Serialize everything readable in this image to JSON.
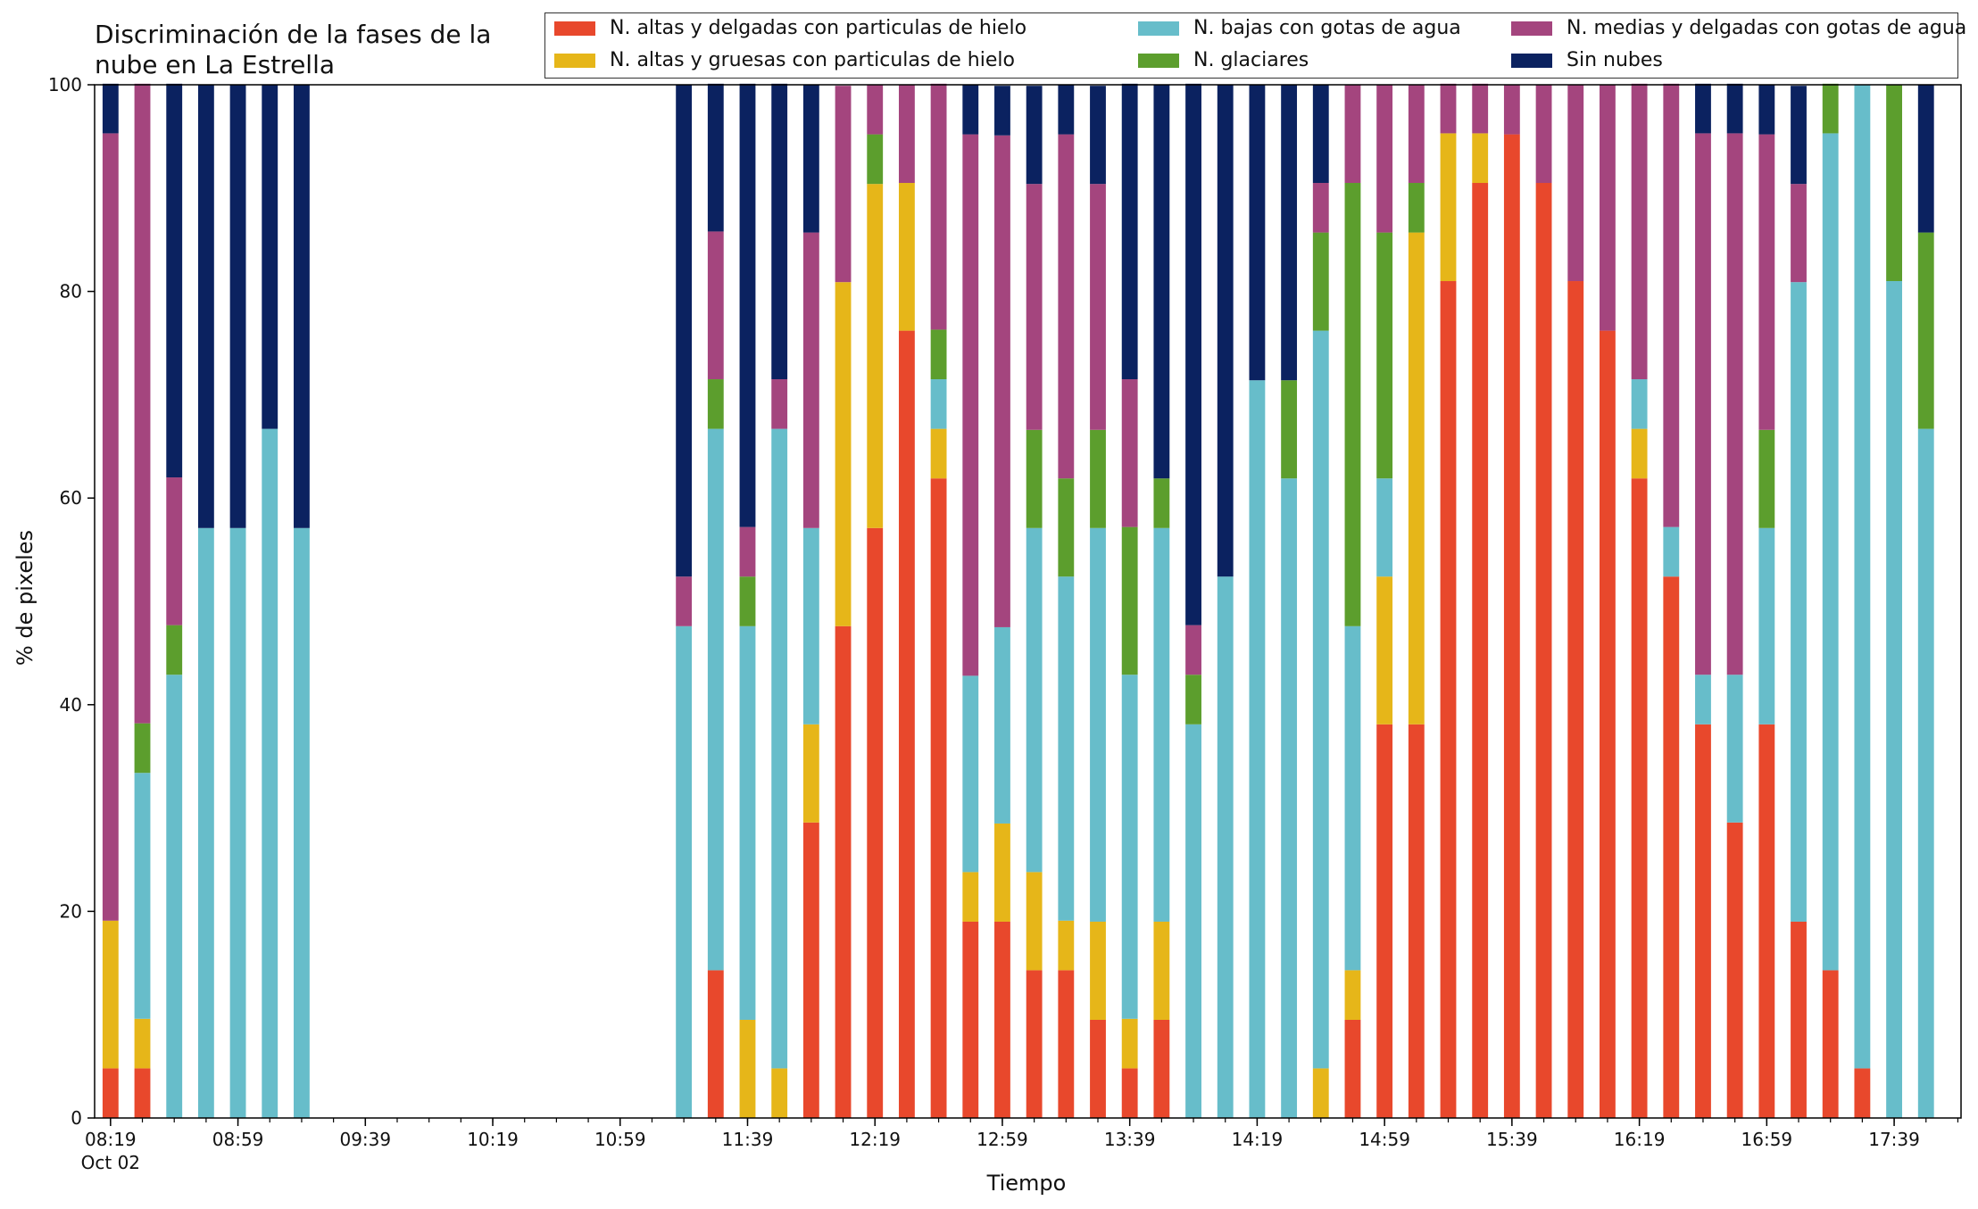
{
  "chart_data": {
    "type": "bar",
    "stacked": true,
    "title": "Discriminación de la fases de la\nnube en La Estrella",
    "xlabel": "Tiempo",
    "ylabel": "% de pixeles",
    "ylim": [
      0,
      100
    ],
    "yticks": [
      "0",
      "20",
      "40",
      "60",
      "80",
      "100"
    ],
    "xlim": [
      "08:14",
      "18:00"
    ],
    "xticks": [
      "08:19",
      "08:59",
      "09:39",
      "10:19",
      "10:59",
      "11:39",
      "12:19",
      "12:59",
      "13:39",
      "14:19",
      "14:59",
      "15:39",
      "16:19",
      "16:59",
      "17:39"
    ],
    "xtick_date": "Oct 02",
    "minor_tick_interval_min": 10,
    "bar_width_min": 5,
    "legend": {
      "location": "top-right",
      "columns": 3
    },
    "series": [
      {
        "name": "N. altas y delgadas con particulas de hielo",
        "color": "#E8482C"
      },
      {
        "name": "N. altas y gruesas con particulas de hielo",
        "color": "#E6B619"
      },
      {
        "name": "N. bajas con gotas de agua",
        "color": "#67BDCA"
      },
      {
        "name": "N. glaciares",
        "color": "#5C9E2D"
      },
      {
        "name": "N. medias y delgadas con gotas de agua",
        "color": "#A4457E"
      },
      {
        "name": "Sin nubes",
        "color": "#0B2260"
      }
    ],
    "x": [
      "08:19",
      "08:29",
      "08:39",
      "08:49",
      "08:59",
      "09:09",
      "09:19",
      "11:19",
      "11:29",
      "11:39",
      "11:49",
      "11:59",
      "12:09",
      "12:19",
      "12:29",
      "12:39",
      "12:49",
      "12:59",
      "13:09",
      "13:19",
      "13:29",
      "13:39",
      "13:49",
      "13:59",
      "14:09",
      "14:19",
      "14:29",
      "14:39",
      "14:49",
      "14:59",
      "15:09",
      "15:19",
      "15:29",
      "15:39",
      "15:49",
      "15:59",
      "16:09",
      "16:19",
      "16:29",
      "16:39",
      "16:49",
      "16:59",
      "17:09",
      "17:19",
      "17:29",
      "17:39",
      "17:49"
    ],
    "values": [
      [
        4.8,
        14.3,
        0,
        0,
        76.2,
        4.8
      ],
      [
        4.8,
        4.8,
        23.8,
        4.8,
        61.9,
        0
      ],
      [
        0,
        0,
        42.9,
        4.8,
        14.3,
        38.1
      ],
      [
        0,
        0,
        57.1,
        0,
        0,
        42.9
      ],
      [
        0,
        0,
        57.1,
        0,
        0,
        42.9
      ],
      [
        0,
        0,
        66.7,
        0,
        0,
        33.3
      ],
      [
        0,
        0,
        57.1,
        0,
        0,
        42.9
      ],
      [
        0,
        0,
        47.6,
        0,
        4.8,
        47.6
      ],
      [
        14.3,
        0,
        52.4,
        4.8,
        14.3,
        14.3
      ],
      [
        0,
        9.5,
        38.1,
        4.8,
        4.8,
        42.9
      ],
      [
        0,
        4.8,
        61.9,
        0,
        4.8,
        28.6
      ],
      [
        28.6,
        9.5,
        19.0,
        0,
        28.6,
        14.3
      ],
      [
        47.6,
        33.3,
        0,
        0,
        19.0,
        0
      ],
      [
        57.1,
        33.3,
        0,
        4.8,
        4.8,
        0
      ],
      [
        76.2,
        14.3,
        0,
        0,
        9.5,
        0
      ],
      [
        61.9,
        4.8,
        4.8,
        4.8,
        23.8,
        0
      ],
      [
        19.0,
        4.8,
        19.0,
        0,
        52.4,
        4.8
      ],
      [
        19.0,
        9.5,
        19.0,
        0,
        47.6,
        4.8
      ],
      [
        14.3,
        9.5,
        33.3,
        9.5,
        23.8,
        9.5
      ],
      [
        14.3,
        4.8,
        33.3,
        9.5,
        33.3,
        4.8
      ],
      [
        9.5,
        9.5,
        38.1,
        9.5,
        23.8,
        9.5
      ],
      [
        4.8,
        4.8,
        33.3,
        14.3,
        14.3,
        28.6
      ],
      [
        9.5,
        9.5,
        38.1,
        4.8,
        0,
        38.1
      ],
      [
        0,
        0,
        38.1,
        4.8,
        4.8,
        52.4
      ],
      [
        0,
        0,
        52.4,
        0,
        0,
        47.6
      ],
      [
        0,
        0,
        71.4,
        0,
        0,
        28.6
      ],
      [
        0,
        0,
        61.9,
        9.5,
        0,
        28.6
      ],
      [
        0,
        4.8,
        71.4,
        9.5,
        4.8,
        9.5
      ],
      [
        9.5,
        4.8,
        33.3,
        42.9,
        9.5,
        0
      ],
      [
        38.1,
        14.3,
        9.5,
        23.8,
        14.3,
        0
      ],
      [
        38.1,
        47.6,
        0,
        4.8,
        9.5,
        0
      ],
      [
        81.0,
        14.3,
        0,
        0,
        4.8,
        0
      ],
      [
        90.5,
        4.8,
        0,
        0,
        4.8,
        0
      ],
      [
        95.2,
        0,
        0,
        0,
        4.8,
        0
      ],
      [
        90.5,
        0,
        0,
        0,
        9.5,
        0
      ],
      [
        81.0,
        0,
        0,
        0,
        19.0,
        0
      ],
      [
        76.2,
        0,
        0,
        0,
        23.8,
        0
      ],
      [
        61.9,
        4.8,
        4.8,
        0,
        28.6,
        0
      ],
      [
        52.4,
        0,
        4.8,
        0,
        42.9,
        0
      ],
      [
        38.1,
        0,
        4.8,
        0,
        52.4,
        4.8
      ],
      [
        28.6,
        0,
        14.3,
        0,
        52.4,
        4.8
      ],
      [
        38.1,
        0,
        19.0,
        9.5,
        28.6,
        4.8
      ],
      [
        19.0,
        0,
        61.9,
        0,
        9.5,
        9.5
      ],
      [
        14.3,
        0,
        81.0,
        4.8,
        0,
        0
      ],
      [
        4.8,
        0,
        95.2,
        0,
        0,
        0
      ],
      [
        0,
        0,
        81.0,
        19.0,
        0,
        0
      ],
      [
        0,
        0,
        66.7,
        19.0,
        0,
        14.3
      ]
    ]
  }
}
